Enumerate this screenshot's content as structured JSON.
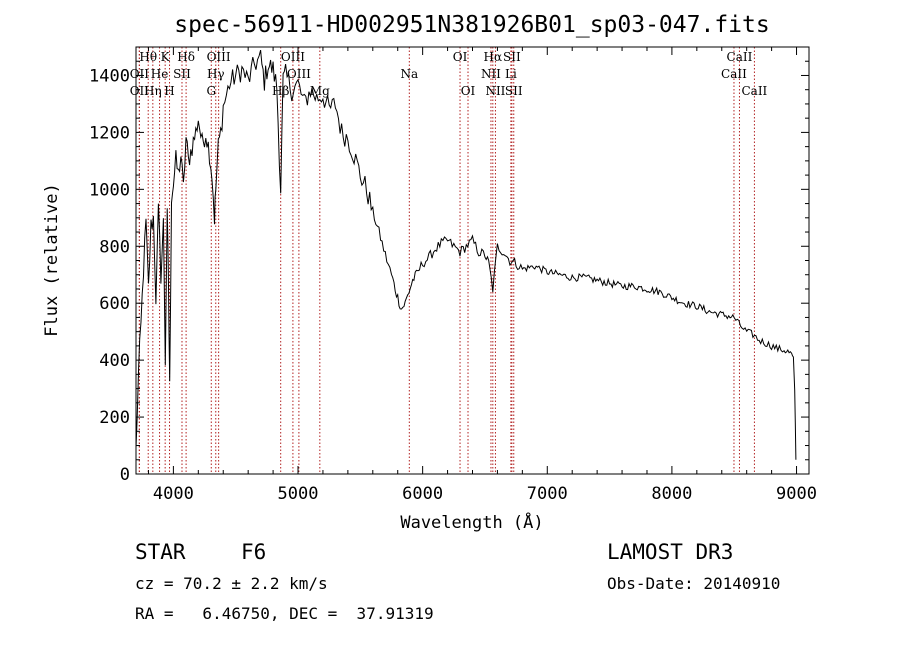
{
  "chart_data": {
    "type": "line",
    "title": "spec-56911-HD002951N381926B01_sp03-047.fits",
    "xlabel": "Wavelength (Å)",
    "ylabel": "Flux (relative)",
    "xlim": [
      3700,
      9100
    ],
    "ylim": [
      0,
      1500
    ],
    "xticks": [
      4000,
      5000,
      6000,
      7000,
      8000,
      9000
    ],
    "yticks": [
      0,
      200,
      400,
      600,
      800,
      1000,
      1200,
      1400
    ],
    "series": [
      {
        "name": "spectrum",
        "x": [
          3700,
          3720,
          3740,
          3760,
          3780,
          3800,
          3820,
          3840,
          3860,
          3880,
          3900,
          3920,
          3935,
          3950,
          3960,
          3970,
          3985,
          4000,
          4020,
          4040,
          4060,
          4080,
          4101,
          4120,
          4150,
          4180,
          4200,
          4230,
          4260,
          4290,
          4310,
          4330,
          4340,
          4360,
          4380,
          4400,
          4450,
          4500,
          4550,
          4600,
          4650,
          4700,
          4730,
          4760,
          4800,
          4830,
          4861,
          4880,
          4900,
          4950,
          5000,
          5050,
          5100,
          5150,
          5200,
          5250,
          5300,
          5350,
          5400,
          5450,
          5500,
          5550,
          5600,
          5650,
          5700,
          5750,
          5780,
          5800,
          5830,
          5860,
          5890,
          5920,
          5950,
          6000,
          6050,
          6100,
          6150,
          6200,
          6250,
          6300,
          6350,
          6400,
          6450,
          6500,
          6530,
          6563,
          6600,
          6650,
          6700,
          6750,
          6800,
          6900,
          7000,
          7100,
          7200,
          7300,
          7400,
          7500,
          7600,
          7700,
          7800,
          7900,
          8000,
          8100,
          8200,
          8300,
          8400,
          8500,
          8550,
          8600,
          8650,
          8700,
          8750,
          8800,
          8850,
          8900,
          8930,
          8960,
          8975,
          8985,
          8995
        ],
        "values": [
          80,
          350,
          520,
          720,
          880,
          650,
          870,
          900,
          620,
          920,
          700,
          880,
          400,
          900,
          700,
          300,
          980,
          1020,
          1100,
          1050,
          1120,
          1000,
          1180,
          1100,
          1150,
          1200,
          1250,
          1160,
          1200,
          1130,
          1050,
          900,
          1000,
          1150,
          1200,
          1290,
          1370,
          1400,
          1420,
          1380,
          1440,
          1460,
          1380,
          1440,
          1420,
          1360,
          1000,
          1380,
          1400,
          1350,
          1370,
          1300,
          1350,
          1320,
          1330,
          1280,
          1300,
          1200,
          1180,
          1120,
          1050,
          1000,
          920,
          850,
          770,
          700,
          650,
          620,
          580,
          600,
          640,
          680,
          700,
          740,
          760,
          790,
          810,
          820,
          800,
          780,
          800,
          820,
          780,
          770,
          740,
          650,
          800,
          780,
          750,
          740,
          720,
          730,
          710,
          700,
          690,
          690,
          680,
          670,
          660,
          660,
          650,
          640,
          620,
          600,
          590,
          570,
          560,
          550,
          520,
          500,
          490,
          470,
          460,
          450,
          440,
          435,
          430,
          420,
          400,
          300,
          50
        ]
      }
    ],
    "line_labels": [
      {
        "label": "Hθ",
        "x": 3798,
        "row": 0
      },
      {
        "label": "OII",
        "x": 3727,
        "row": 1
      },
      {
        "label": "OII",
        "x": 3727,
        "row": 2
      },
      {
        "label": "He",
        "x": 3889,
        "row": 1
      },
      {
        "label": "K",
        "x": 3934,
        "row": 0
      },
      {
        "label": "Hη",
        "x": 3835,
        "row": 2
      },
      {
        "label": "SII",
        "x": 4069,
        "row": 1
      },
      {
        "label": "H",
        "x": 3969,
        "row": 2
      },
      {
        "label": "Hδ",
        "x": 4102,
        "row": 0
      },
      {
        "label": "OIII",
        "x": 4363,
        "row": 0
      },
      {
        "label": "Hγ",
        "x": 4340,
        "row": 1
      },
      {
        "label": "G",
        "x": 4304,
        "row": 2
      },
      {
        "label": "OIII",
        "x": 4959,
        "row": 0
      },
      {
        "label": "OIII",
        "x": 5007,
        "row": 1
      },
      {
        "label": "Hβ",
        "x": 4861,
        "row": 2
      },
      {
        "label": "Mg",
        "x": 5175,
        "row": 2
      },
      {
        "label": "Na",
        "x": 5893,
        "row": 1
      },
      {
        "label": "OI",
        "x": 6300,
        "row": 0
      },
      {
        "label": "OI",
        "x": 6364,
        "row": 2
      },
      {
        "label": "Hα",
        "x": 6563,
        "row": 0
      },
      {
        "label": "SII",
        "x": 6716,
        "row": 0
      },
      {
        "label": "NII",
        "x": 6548,
        "row": 1
      },
      {
        "label": "Li",
        "x": 6708,
        "row": 1
      },
      {
        "label": "NII",
        "x": 6584,
        "row": 2
      },
      {
        "label": "SII",
        "x": 6731,
        "row": 2
      },
      {
        "label": "CaII",
        "x": 8542,
        "row": 0
      },
      {
        "label": "CaII",
        "x": 8498,
        "row": 1
      },
      {
        "label": "CaII",
        "x": 8662,
        "row": 2
      }
    ]
  },
  "info": {
    "object_class": "STAR",
    "subclass": "F6",
    "survey": "LAMOST DR3",
    "redshift": "cz = 70.2 ± 2.2 km/s",
    "obs_date": "Obs-Date: 20140910",
    "coords": "RA =   6.46750, DEC =  37.91319"
  }
}
